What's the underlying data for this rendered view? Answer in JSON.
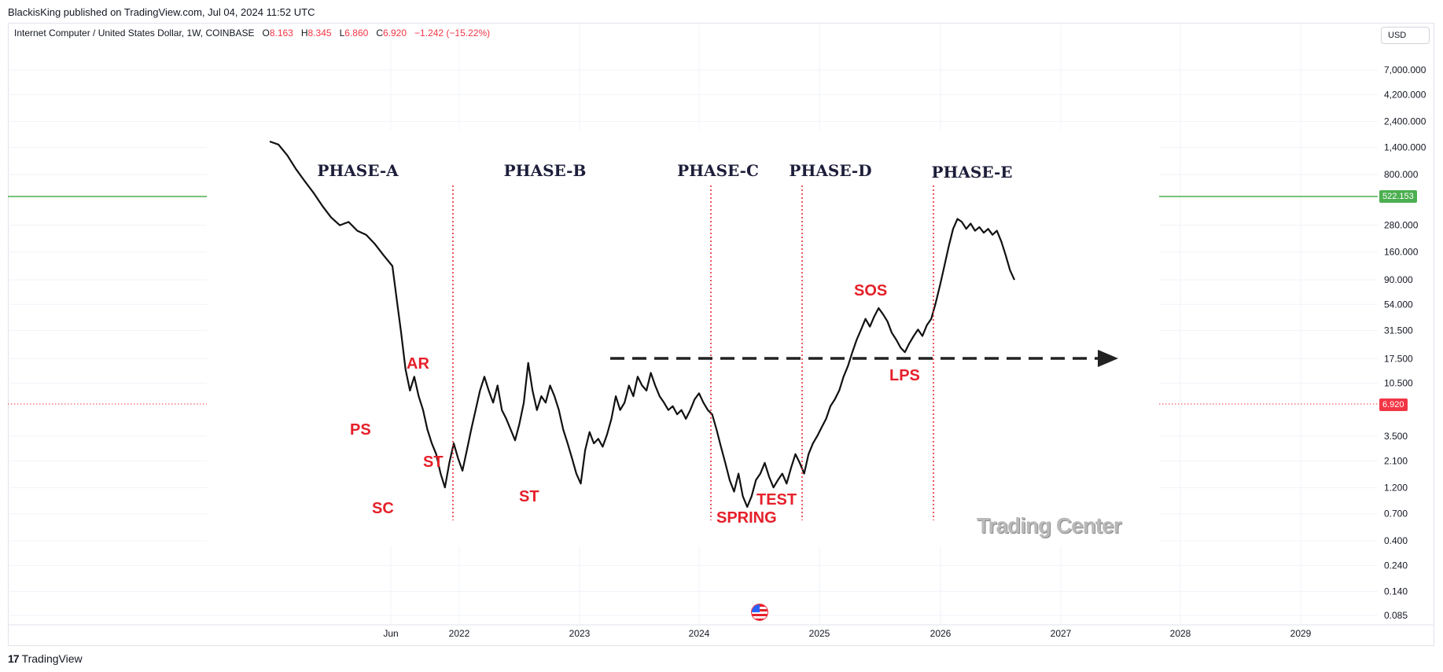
{
  "header": {
    "credit": "BlackisKing published on TradingView.com, Jul 04, 2024 11:52 UTC"
  },
  "symbol": {
    "name": "Internet Computer / United States Dollar, 1W, COINBASE",
    "o_label": "O",
    "o": "8.163",
    "h_label": "H",
    "h": "8.345",
    "l_label": "L",
    "l": "6.860",
    "c_label": "C",
    "c": "6.920",
    "change": "−1.242 (−15.22%)"
  },
  "currency_button": "USD",
  "price_tags": {
    "green": "522.153",
    "red": "6.920"
  },
  "colors": {
    "up_line": "#4caf50",
    "down_line": "#f23645",
    "annotation_red": "#e5202a"
  },
  "brand": {
    "logo": "17",
    "name": "TradingView"
  },
  "overlay_watermark": "Trading Center",
  "chart_data": {
    "type": "line",
    "scale": "log",
    "y_ticks": [
      "7,000.000",
      "4,200.000",
      "2,400.000",
      "1,400.000",
      "800.000",
      "280.000",
      "160.000",
      "90.000",
      "54.000",
      "31.500",
      "17.500",
      "10.500",
      "3.500",
      "2.100",
      "1.200",
      "0.700",
      "0.400",
      "0.240",
      "0.140",
      "0.085"
    ],
    "x_ticks": [
      "Jun",
      "2022",
      "2023",
      "2024",
      "2025",
      "2026",
      "2027",
      "2028",
      "2029"
    ],
    "horizontal_lines": [
      {
        "value": 522.153,
        "color": "#4caf50",
        "style": "solid"
      },
      {
        "value": 6.92,
        "color": "#f23645",
        "style": "dotted"
      }
    ],
    "phases": [
      "PHASE-A",
      "PHASE-B",
      "PHASE-C",
      "PHASE-D",
      "PHASE-E"
    ],
    "annotations": [
      "PS",
      "SC",
      "AR",
      "ST",
      "ST",
      "SPRING",
      "TEST",
      "SOS",
      "LPS"
    ],
    "series_points": [
      [
        0,
        1600
      ],
      [
        4,
        1500
      ],
      [
        8,
        1200
      ],
      [
        12,
        900
      ],
      [
        16,
        700
      ],
      [
        20,
        550
      ],
      [
        24,
        420
      ],
      [
        28,
        330
      ],
      [
        32,
        280
      ],
      [
        36,
        300
      ],
      [
        40,
        250
      ],
      [
        44,
        230
      ],
      [
        48,
        190
      ],
      [
        52,
        150
      ],
      [
        56,
        120
      ],
      [
        58,
        60
      ],
      [
        60,
        30
      ],
      [
        62,
        14
      ],
      [
        64,
        9
      ],
      [
        66,
        12
      ],
      [
        68,
        8
      ],
      [
        70,
        6
      ],
      [
        72,
        4
      ],
      [
        74,
        3
      ],
      [
        76,
        2.4
      ],
      [
        78,
        1.6
      ],
      [
        80,
        1.2
      ],
      [
        82,
        2
      ],
      [
        84,
        3
      ],
      [
        86,
        2.2
      ],
      [
        88,
        1.7
      ],
      [
        90,
        2.6
      ],
      [
        92,
        4
      ],
      [
        94,
        6
      ],
      [
        96,
        9
      ],
      [
        98,
        12
      ],
      [
        100,
        9
      ],
      [
        102,
        7
      ],
      [
        104,
        10
      ],
      [
        106,
        6
      ],
      [
        108,
        5
      ],
      [
        110,
        4
      ],
      [
        112,
        3.2
      ],
      [
        114,
        4.5
      ],
      [
        116,
        7
      ],
      [
        118,
        16
      ],
      [
        120,
        9
      ],
      [
        122,
        6
      ],
      [
        124,
        8
      ],
      [
        126,
        7
      ],
      [
        128,
        10
      ],
      [
        130,
        8
      ],
      [
        132,
        6
      ],
      [
        134,
        4
      ],
      [
        136,
        3
      ],
      [
        138,
        2.2
      ],
      [
        140,
        1.6
      ],
      [
        142,
        1.3
      ],
      [
        144,
        2.6
      ],
      [
        146,
        3.8
      ],
      [
        148,
        3
      ],
      [
        150,
        3.3
      ],
      [
        152,
        2.8
      ],
      [
        154,
        3.6
      ],
      [
        156,
        5
      ],
      [
        158,
        8
      ],
      [
        160,
        6
      ],
      [
        162,
        7
      ],
      [
        164,
        10
      ],
      [
        166,
        8
      ],
      [
        168,
        12
      ],
      [
        170,
        10
      ],
      [
        172,
        9
      ],
      [
        174,
        13
      ],
      [
        176,
        10
      ],
      [
        178,
        8
      ],
      [
        180,
        7
      ],
      [
        182,
        6
      ],
      [
        184,
        6.5
      ],
      [
        186,
        5.5
      ],
      [
        188,
        6
      ],
      [
        190,
        5
      ],
      [
        192,
        6
      ],
      [
        194,
        7.5
      ],
      [
        196,
        8.5
      ],
      [
        198,
        7
      ],
      [
        200,
        6
      ],
      [
        202,
        5.5
      ],
      [
        204,
        4
      ],
      [
        206,
        2.8
      ],
      [
        208,
        2
      ],
      [
        210,
        1.4
      ],
      [
        212,
        1.1
      ],
      [
        214,
        1.6
      ],
      [
        216,
        1
      ],
      [
        218,
        0.8
      ],
      [
        220,
        1
      ],
      [
        222,
        1.4
      ],
      [
        224,
        1.6
      ],
      [
        226,
        2
      ],
      [
        228,
        1.5
      ],
      [
        230,
        1.2
      ],
      [
        232,
        1.4
      ],
      [
        234,
        1.6
      ],
      [
        236,
        1.3
      ],
      [
        238,
        1.8
      ],
      [
        240,
        2.4
      ],
      [
        242,
        2
      ],
      [
        244,
        1.6
      ],
      [
        246,
        2.4
      ],
      [
        248,
        3
      ],
      [
        250,
        3.5
      ],
      [
        252,
        4.2
      ],
      [
        254,
        5
      ],
      [
        256,
        6.5
      ],
      [
        258,
        7.5
      ],
      [
        260,
        9
      ],
      [
        262,
        12
      ],
      [
        264,
        15
      ],
      [
        266,
        20
      ],
      [
        268,
        26
      ],
      [
        270,
        32
      ],
      [
        272,
        40
      ],
      [
        274,
        34
      ],
      [
        276,
        42
      ],
      [
        278,
        50
      ],
      [
        280,
        44
      ],
      [
        282,
        38
      ],
      [
        284,
        30
      ],
      [
        286,
        26
      ],
      [
        288,
        22
      ],
      [
        290,
        20
      ],
      [
        292,
        24
      ],
      [
        294,
        28
      ],
      [
        296,
        32
      ],
      [
        298,
        28
      ],
      [
        300,
        35
      ],
      [
        302,
        40
      ],
      [
        304,
        55
      ],
      [
        306,
        80
      ],
      [
        308,
        120
      ],
      [
        310,
        180
      ],
      [
        312,
        260
      ],
      [
        314,
        320
      ],
      [
        316,
        300
      ],
      [
        318,
        260
      ],
      [
        320,
        290
      ],
      [
        322,
        250
      ],
      [
        324,
        270
      ],
      [
        326,
        240
      ],
      [
        328,
        260
      ],
      [
        330,
        230
      ],
      [
        332,
        250
      ],
      [
        334,
        200
      ],
      [
        336,
        150
      ],
      [
        338,
        110
      ],
      [
        340,
        90
      ]
    ]
  }
}
